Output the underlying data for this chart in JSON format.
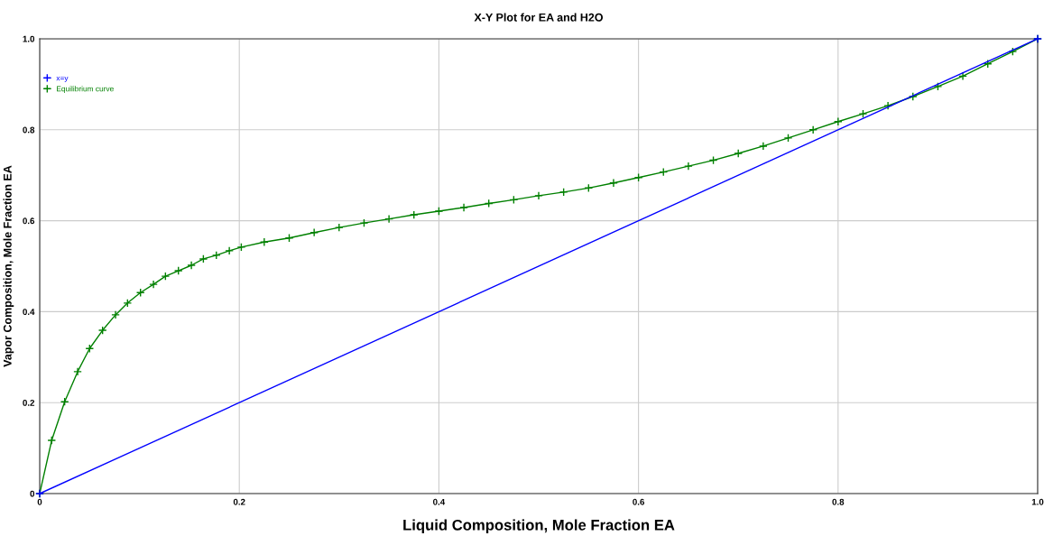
{
  "chart_data": {
    "type": "line",
    "title": "X-Y Plot for EA and H2O",
    "xlabel": "Liquid Composition, Mole Fraction EA",
    "ylabel": "Vapor Composition, Mole Fraction EA",
    "xlim": [
      0,
      1.0
    ],
    "ylim": [
      0,
      1.0
    ],
    "xticks": [
      0,
      0.2,
      0.4,
      0.6,
      0.8,
      {
        "value": 1.0,
        "label": "1.0"
      }
    ],
    "yticks": [
      0,
      0.2,
      0.4,
      0.6,
      0.8,
      {
        "value": 1.0,
        "label": "1.0"
      }
    ],
    "grid": true,
    "legend": "top left",
    "line_style": "solid",
    "series": [
      {
        "name": "x=y",
        "color": "#0000ff",
        "marker": "cross",
        "x": [
          0,
          1.0
        ],
        "values": [
          0,
          1.0
        ]
      },
      {
        "name": "Equilibrium curve",
        "color": "#008000",
        "marker": "cross",
        "x": [
          0,
          0.012,
          0.025,
          0.038,
          0.05,
          0.063,
          0.076,
          0.088,
          0.101,
          0.114,
          0.126,
          0.139,
          0.152,
          0.164,
          0.177,
          0.19,
          0.202,
          0.225,
          0.25,
          0.275,
          0.3,
          0.325,
          0.35,
          0.375,
          0.4,
          0.425,
          0.45,
          0.475,
          0.5,
          0.525,
          0.55,
          0.575,
          0.6,
          0.625,
          0.65,
          0.675,
          0.7,
          0.725,
          0.75,
          0.775,
          0.8,
          0.825,
          0.85,
          0.875,
          0.9,
          0.925,
          0.95,
          0.975,
          1.0
        ],
        "values": [
          0,
          0.117,
          0.202,
          0.268,
          0.319,
          0.359,
          0.393,
          0.419,
          0.442,
          0.46,
          0.478,
          0.49,
          0.502,
          0.516,
          0.524,
          0.534,
          0.542,
          0.553,
          0.562,
          0.574,
          0.585,
          0.595,
          0.604,
          0.613,
          0.621,
          0.629,
          0.638,
          0.646,
          0.655,
          0.663,
          0.672,
          0.683,
          0.695,
          0.707,
          0.72,
          0.733,
          0.748,
          0.764,
          0.782,
          0.8,
          0.818,
          0.835,
          0.853,
          0.873,
          0.895,
          0.918,
          0.945,
          0.972,
          1.0
        ]
      }
    ]
  }
}
